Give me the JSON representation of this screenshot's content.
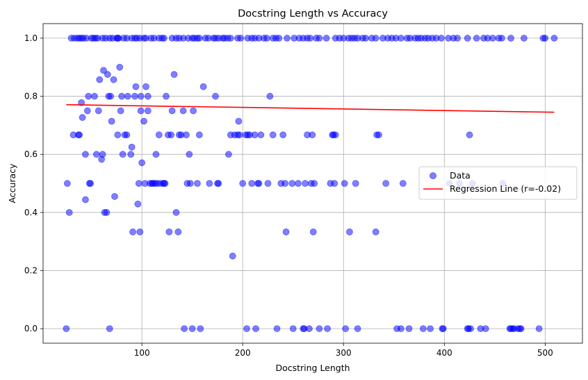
{
  "chart_data": {
    "type": "scatter",
    "title": "Docstring Length vs Accuracy",
    "xlabel": "Docstring Length",
    "ylabel": "Accuracy",
    "xlim": [
      2,
      537
    ],
    "ylim": [
      -0.05,
      1.05
    ],
    "xticks": [
      100,
      200,
      300,
      400,
      500
    ],
    "yticks": [
      0.0,
      0.2,
      0.4,
      0.6,
      0.8,
      1.0
    ],
    "xtick_labels": [
      "100",
      "200",
      "300",
      "400",
      "500"
    ],
    "ytick_labels": [
      "0.0",
      "0.2",
      "0.4",
      "0.6",
      "0.8",
      "1.0"
    ],
    "grid": true,
    "legend_position": "center-right",
    "series": [
      {
        "name": "Data",
        "kind": "scatter",
        "color": "#0000ff",
        "alpha": 0.5,
        "points": [
          [
            25,
            0
          ],
          [
            26,
            0.5
          ],
          [
            28,
            0.4
          ],
          [
            32,
            0.667
          ],
          [
            37,
            0.667
          ],
          [
            38,
            0.667
          ],
          [
            40,
            0.778
          ],
          [
            41,
            0.727
          ],
          [
            44,
            0.6
          ],
          [
            44,
            0.444
          ],
          [
            46,
            0.75
          ],
          [
            47,
            0.8
          ],
          [
            48,
            0.5
          ],
          [
            49,
            0.5
          ],
          [
            53,
            0.8
          ],
          [
            55,
            0.6
          ],
          [
            57,
            0.75
          ],
          [
            58,
            0.857
          ],
          [
            60,
            0.583
          ],
          [
            61,
            0.6
          ],
          [
            62,
            0.889
          ],
          [
            63,
            0.4
          ],
          [
            65,
            0.4
          ],
          [
            66,
            0.875
          ],
          [
            67,
            0.8
          ],
          [
            68,
            0
          ],
          [
            69,
            0.8
          ],
          [
            70,
            0.714
          ],
          [
            72,
            0.857
          ],
          [
            73,
            0.455
          ],
          [
            76,
            0.667
          ],
          [
            78,
            0.9
          ],
          [
            79,
            0.75
          ],
          [
            80,
            0.8
          ],
          [
            81,
            0.6
          ],
          [
            83,
            0.667
          ],
          [
            85,
            0.667
          ],
          [
            86,
            0.8
          ],
          [
            89,
            0.6
          ],
          [
            90,
            0.625
          ],
          [
            91,
            0.333
          ],
          [
            93,
            0.8
          ],
          [
            94,
            0.833
          ],
          [
            96,
            0.429
          ],
          [
            97,
            0.5
          ],
          [
            98,
            0.333
          ],
          [
            99,
            0.8
          ],
          [
            99,
            0.75
          ],
          [
            100,
            0.571
          ],
          [
            102,
            0.714
          ],
          [
            103,
            0.5
          ],
          [
            104,
            0.833
          ],
          [
            106,
            0.75
          ],
          [
            106,
            0.8
          ],
          [
            108,
            0.5
          ],
          [
            110,
            0.5
          ],
          [
            111,
            0.5
          ],
          [
            113,
            0.5
          ],
          [
            114,
            0.6
          ],
          [
            115,
            0.5
          ],
          [
            117,
            0.667
          ],
          [
            118,
            0.5
          ],
          [
            121,
            0.5
          ],
          [
            122,
            0.5
          ],
          [
            123,
            0.5
          ],
          [
            124,
            0.8
          ],
          [
            126,
            0.667
          ],
          [
            127,
            0.333
          ],
          [
            129,
            0.667
          ],
          [
            130,
            0.75
          ],
          [
            132,
            0.875
          ],
          [
            134,
            0.4
          ],
          [
            136,
            0.333
          ],
          [
            137,
            0.667
          ],
          [
            139,
            0.667
          ],
          [
            141,
            0.75
          ],
          [
            142,
            0
          ],
          [
            144,
            0.667
          ],
          [
            145,
            0.5
          ],
          [
            147,
            0.6
          ],
          [
            148,
            0.5
          ],
          [
            150,
            0
          ],
          [
            151,
            0.75
          ],
          [
            155,
            0.5
          ],
          [
            157,
            0.667
          ],
          [
            158,
            0
          ],
          [
            161,
            0.833
          ],
          [
            167,
            0.5
          ],
          [
            173,
            0.8
          ],
          [
            175,
            0.5
          ],
          [
            176,
            0.5
          ],
          [
            186,
            0.6
          ],
          [
            188,
            0.667
          ],
          [
            190,
            0.25
          ],
          [
            192,
            0.667
          ],
          [
            195,
            0.667
          ],
          [
            196,
            0.714
          ],
          [
            197,
            0.667
          ],
          [
            200,
            0.5
          ],
          [
            203,
            0.667
          ],
          [
            204,
            0
          ],
          [
            205,
            0.667
          ],
          [
            207,
            0.667
          ],
          [
            209,
            0.5
          ],
          [
            212,
            0.667
          ],
          [
            213,
            0
          ],
          [
            215,
            0.5
          ],
          [
            216,
            0.5
          ],
          [
            218,
            0.667
          ],
          [
            225,
            0.5
          ],
          [
            227,
            0.8
          ],
          [
            230,
            0.667
          ],
          [
            234,
            0
          ],
          [
            238,
            0.5
          ],
          [
            240,
            0.667
          ],
          [
            242,
            0.5
          ],
          [
            243,
            0.333
          ],
          [
            249,
            0.5
          ],
          [
            250,
            0
          ],
          [
            255,
            0.5
          ],
          [
            260,
            0
          ],
          [
            261,
            0
          ],
          [
            262,
            0.5
          ],
          [
            264,
            0.667
          ],
          [
            266,
            0
          ],
          [
            268,
            0.5
          ],
          [
            269,
            0.667
          ],
          [
            270,
            0.333
          ],
          [
            271,
            0.5
          ],
          [
            276,
            0
          ],
          [
            284,
            0
          ],
          [
            287,
            0.5
          ],
          [
            289,
            0.667
          ],
          [
            290,
            0.667
          ],
          [
            291,
            0.5
          ],
          [
            292,
            0.667
          ],
          [
            301,
            0.5
          ],
          [
            302,
            0
          ],
          [
            306,
            0.333
          ],
          [
            312,
            0.5
          ],
          [
            314,
            0
          ],
          [
            332,
            0.333
          ],
          [
            333,
            0.667
          ],
          [
            335,
            0.667
          ],
          [
            342,
            0.5
          ],
          [
            353,
            0
          ],
          [
            357,
            0
          ],
          [
            359,
            0.5
          ],
          [
            365,
            0
          ],
          [
            379,
            0
          ],
          [
            386,
            0
          ],
          [
            398,
            0
          ],
          [
            399,
            0
          ],
          [
            405,
            0.5
          ],
          [
            415,
            0.5
          ],
          [
            423,
            0
          ],
          [
            424,
            0
          ],
          [
            425,
            0.667
          ],
          [
            426,
            0
          ],
          [
            428,
            0.5
          ],
          [
            436,
            0
          ],
          [
            441,
            0
          ],
          [
            458,
            0.5
          ],
          [
            465,
            0
          ],
          [
            466,
            0
          ],
          [
            468,
            0
          ],
          [
            469,
            0
          ],
          [
            473,
            0
          ],
          [
            475,
            0
          ],
          [
            476,
            0
          ],
          [
            494,
            0
          ],
          [
            30,
            1
          ],
          [
            33,
            1
          ],
          [
            36,
            1
          ],
          [
            38,
            1
          ],
          [
            40,
            1
          ],
          [
            42,
            1
          ],
          [
            45,
            1
          ],
          [
            50,
            1
          ],
          [
            52,
            1
          ],
          [
            54,
            1
          ],
          [
            56,
            1
          ],
          [
            61,
            1
          ],
          [
            64,
            1
          ],
          [
            68,
            1
          ],
          [
            71,
            1
          ],
          [
            75,
            1
          ],
          [
            76,
            1
          ],
          [
            77,
            1
          ],
          [
            82,
            1
          ],
          [
            85,
            1
          ],
          [
            90,
            1
          ],
          [
            93,
            1
          ],
          [
            95,
            1
          ],
          [
            98,
            1
          ],
          [
            102,
            1
          ],
          [
            104,
            1
          ],
          [
            109,
            1
          ],
          [
            112,
            1
          ],
          [
            117,
            1
          ],
          [
            120,
            1
          ],
          [
            122,
            1
          ],
          [
            130,
            1
          ],
          [
            134,
            1
          ],
          [
            137,
            1
          ],
          [
            141,
            1
          ],
          [
            146,
            1
          ],
          [
            150,
            1
          ],
          [
            152,
            1
          ],
          [
            155,
            1
          ],
          [
            157,
            1
          ],
          [
            163,
            1
          ],
          [
            166,
            1
          ],
          [
            171,
            1
          ],
          [
            173,
            1
          ],
          [
            176,
            1
          ],
          [
            180,
            1
          ],
          [
            182,
            1
          ],
          [
            185,
            1
          ],
          [
            188,
            1
          ],
          [
            195,
            1
          ],
          [
            198,
            1
          ],
          [
            205,
            1
          ],
          [
            209,
            1
          ],
          [
            212,
            1
          ],
          [
            216,
            1
          ],
          [
            221,
            1
          ],
          [
            224,
            1
          ],
          [
            230,
            1
          ],
          [
            233,
            1
          ],
          [
            236,
            1
          ],
          [
            244,
            1
          ],
          [
            251,
            1
          ],
          [
            256,
            1
          ],
          [
            260,
            1
          ],
          [
            264,
            1
          ],
          [
            267,
            1
          ],
          [
            273,
            1
          ],
          [
            276,
            1
          ],
          [
            283,
            1
          ],
          [
            292,
            1
          ],
          [
            296,
            1
          ],
          [
            300,
            1
          ],
          [
            305,
            1
          ],
          [
            308,
            1
          ],
          [
            311,
            1
          ],
          [
            314,
            1
          ],
          [
            319,
            1
          ],
          [
            322,
            1
          ],
          [
            328,
            1
          ],
          [
            332,
            1
          ],
          [
            339,
            1
          ],
          [
            344,
            1
          ],
          [
            348,
            1
          ],
          [
            352,
            1
          ],
          [
            357,
            1
          ],
          [
            363,
            1
          ],
          [
            366,
            1
          ],
          [
            371,
            1
          ],
          [
            374,
            1
          ],
          [
            377,
            1
          ],
          [
            381,
            1
          ],
          [
            384,
            1
          ],
          [
            388,
            1
          ],
          [
            392,
            1
          ],
          [
            397,
            1
          ],
          [
            404,
            1
          ],
          [
            409,
            1
          ],
          [
            413,
            1
          ],
          [
            423,
            1
          ],
          [
            432,
            1
          ],
          [
            439,
            1
          ],
          [
            443,
            1
          ],
          [
            448,
            1
          ],
          [
            454,
            1
          ],
          [
            457,
            1
          ],
          [
            466,
            1
          ],
          [
            479,
            1
          ],
          [
            498,
            1
          ],
          [
            500,
            1
          ],
          [
            509,
            1
          ]
        ]
      },
      {
        "name": "Regression Line (r=-0.02)",
        "kind": "line",
        "color": "#ff0000",
        "points": [
          [
            25,
            0.771
          ],
          [
            509,
            0.745
          ]
        ]
      }
    ]
  }
}
